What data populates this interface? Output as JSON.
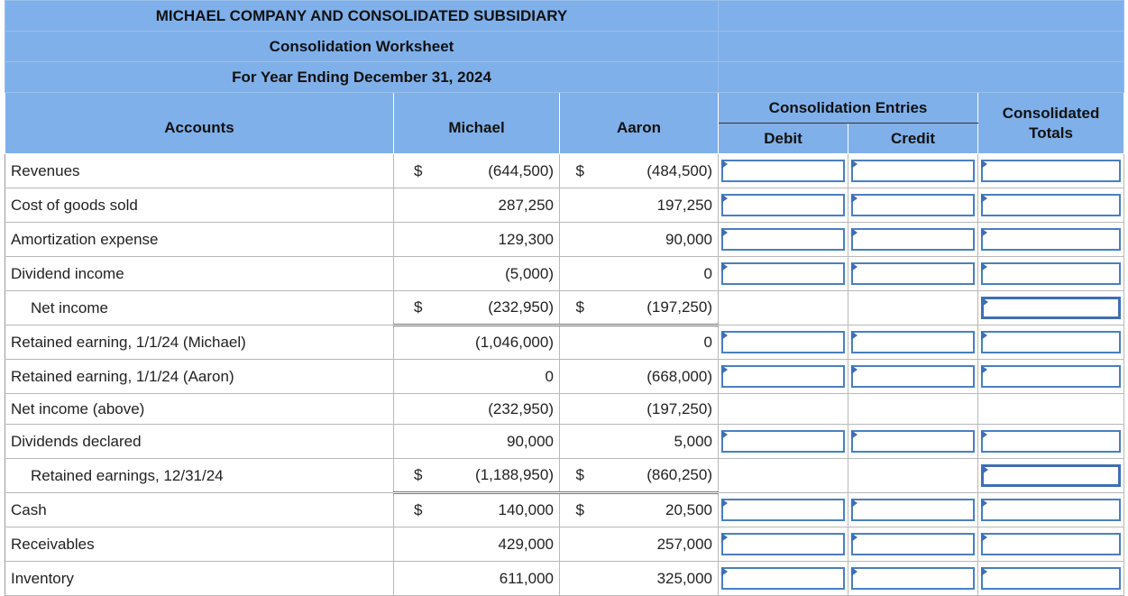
{
  "worksheet": {
    "title_line1": "MICHAEL COMPANY AND CONSOLIDATED SUBSIDIARY",
    "title_line2": "Consolidation Worksheet",
    "title_line3": "For Year Ending December 31, 2024"
  },
  "columns": {
    "accounts": "Accounts",
    "michael": "Michael",
    "aaron": "Aaron",
    "entries_group": "Consolidation Entries",
    "debit": "Debit",
    "credit": "Credit",
    "totals": "Consolidated Totals"
  },
  "rows": [
    {
      "account": "Revenues",
      "michael_sym": "$",
      "michael": "(644,500)",
      "aaron_sym": "$",
      "aaron": "(484,500)"
    },
    {
      "account": "Cost of goods sold",
      "michael_sym": "",
      "michael": "287,250",
      "aaron_sym": "",
      "aaron": "197,250"
    },
    {
      "account": "Amortization expense",
      "michael_sym": "",
      "michael": "129,300",
      "aaron_sym": "",
      "aaron": "90,000"
    },
    {
      "account": "Dividend income",
      "michael_sym": "",
      "michael": "(5,000)",
      "aaron_sym": "",
      "aaron": "0"
    },
    {
      "account": "Net income",
      "michael_sym": "$",
      "michael": "(232,950)",
      "aaron_sym": "$",
      "aaron": "(197,250)"
    },
    {
      "account": "Retained earning, 1/1/24 (Michael)",
      "michael_sym": "",
      "michael": "(1,046,000)",
      "aaron_sym": "",
      "aaron": "0"
    },
    {
      "account": "Retained earning, 1/1/24 (Aaron)",
      "michael_sym": "",
      "michael": "0",
      "aaron_sym": "",
      "aaron": "(668,000)"
    },
    {
      "account": "Net income (above)",
      "michael_sym": "",
      "michael": "(232,950)",
      "aaron_sym": "",
      "aaron": "(197,250)"
    },
    {
      "account": "Dividends declared",
      "michael_sym": "",
      "michael": "90,000",
      "aaron_sym": "",
      "aaron": "5,000"
    },
    {
      "account": "Retained earnings, 12/31/24",
      "michael_sym": "$",
      "michael": "(1,188,950)",
      "aaron_sym": "$",
      "aaron": "(860,250)"
    },
    {
      "account": "Cash",
      "michael_sym": "$",
      "michael": "140,000",
      "aaron_sym": "$",
      "aaron": "20,500"
    },
    {
      "account": "Receivables",
      "michael_sym": "",
      "michael": "429,000",
      "aaron_sym": "",
      "aaron": "257,000"
    },
    {
      "account": "Inventory",
      "michael_sym": "",
      "michael": "611,000",
      "aaron_sym": "",
      "aaron": "325,000"
    }
  ],
  "input_state": {
    "debit_placeholder": "",
    "credit_placeholder": "",
    "totals_placeholder": ""
  }
}
